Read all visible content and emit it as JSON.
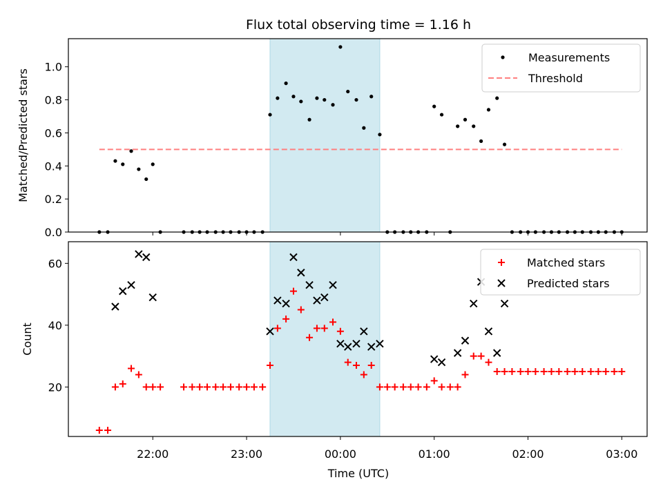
{
  "chart_data": {
    "type": "scatter",
    "title": "Flux total observing time = 1.16 h",
    "xlabel": "Time (UTC)",
    "x_ticks": [
      "22:00",
      "23:00",
      "00:00",
      "01:00",
      "02:00",
      "03:00"
    ],
    "x_tick_values": [
      22.0,
      23.0,
      24.0,
      25.0,
      26.0,
      27.0
    ],
    "xlim": [
      21.1,
      27.27
    ],
    "highlight_span": {
      "x_start": 23.25,
      "x_end": 24.42,
      "color": "#add8e6"
    },
    "panels": [
      {
        "ylabel": "Matched/Predicted stars",
        "ylim": [
          0,
          1.17
        ],
        "y_ticks": [
          "0.0",
          "0.2",
          "0.4",
          "0.6",
          "0.8",
          "1.0"
        ],
        "y_tick_values": [
          0,
          0.2,
          0.4,
          0.6,
          0.8,
          1.0
        ],
        "legend_position": "top-right",
        "series": [
          {
            "name": "Measurements",
            "marker": "dot",
            "color": "#000000",
            "points": [
              [
                21.43,
                0
              ],
              [
                21.52,
                0
              ],
              [
                21.6,
                0.43
              ],
              [
                21.68,
                0.41
              ],
              [
                21.77,
                0.49
              ],
              [
                21.85,
                0.38
              ],
              [
                21.93,
                0.32
              ],
              [
                22.0,
                0.41
              ],
              [
                22.08,
                0
              ],
              [
                22.33,
                0
              ],
              [
                22.42,
                0
              ],
              [
                22.5,
                0
              ],
              [
                22.58,
                0
              ],
              [
                22.67,
                0
              ],
              [
                22.75,
                0
              ],
              [
                22.83,
                0
              ],
              [
                22.92,
                0
              ],
              [
                23.0,
                0
              ],
              [
                23.08,
                0
              ],
              [
                23.17,
                0
              ],
              [
                23.25,
                0.71
              ],
              [
                23.33,
                0.81
              ],
              [
                23.42,
                0.9
              ],
              [
                23.5,
                0.82
              ],
              [
                23.58,
                0.79
              ],
              [
                23.67,
                0.68
              ],
              [
                23.75,
                0.81
              ],
              [
                23.83,
                0.8
              ],
              [
                23.92,
                0.77
              ],
              [
                24.0,
                1.12
              ],
              [
                24.08,
                0.85
              ],
              [
                24.17,
                0.8
              ],
              [
                24.25,
                0.63
              ],
              [
                24.33,
                0.82
              ],
              [
                24.42,
                0.59
              ],
              [
                24.5,
                0
              ],
              [
                24.58,
                0
              ],
              [
                24.67,
                0
              ],
              [
                24.75,
                0
              ],
              [
                24.83,
                0
              ],
              [
                24.92,
                0
              ],
              [
                25.0,
                0.76
              ],
              [
                25.08,
                0.71
              ],
              [
                25.17,
                0
              ],
              [
                25.25,
                0.64
              ],
              [
                25.33,
                0.68
              ],
              [
                25.42,
                0.64
              ],
              [
                25.5,
                0.55
              ],
              [
                25.58,
                0.74
              ],
              [
                25.67,
                0.81
              ],
              [
                25.75,
                0.53
              ],
              [
                25.83,
                0
              ],
              [
                25.92,
                0
              ],
              [
                26.0,
                0
              ],
              [
                26.08,
                0
              ],
              [
                26.17,
                0
              ],
              [
                26.25,
                0
              ],
              [
                26.33,
                0
              ],
              [
                26.42,
                0
              ],
              [
                26.5,
                0
              ],
              [
                26.58,
                0
              ],
              [
                26.67,
                0
              ],
              [
                26.75,
                0
              ],
              [
                26.83,
                0
              ],
              [
                26.92,
                0
              ],
              [
                27.0,
                0
              ]
            ]
          },
          {
            "name": "Threshold",
            "marker": "dashed-line",
            "color": "#ff7f7f",
            "points": [
              [
                21.43,
                0.5
              ],
              [
                27.0,
                0.5
              ]
            ]
          }
        ]
      },
      {
        "ylabel": "Count",
        "ylim": [
          4,
          67
        ],
        "y_ticks": [
          "20",
          "40",
          "60"
        ],
        "y_tick_values": [
          20,
          40,
          60
        ],
        "legend_position": "top-right",
        "series": [
          {
            "name": "Matched stars",
            "marker": "plus",
            "color": "#ff0000",
            "points": [
              [
                21.43,
                6
              ],
              [
                21.52,
                6
              ],
              [
                21.6,
                20
              ],
              [
                21.68,
                21
              ],
              [
                21.77,
                26
              ],
              [
                21.85,
                24
              ],
              [
                21.93,
                20
              ],
              [
                22.0,
                20
              ],
              [
                22.08,
                20
              ],
              [
                22.33,
                20
              ],
              [
                22.42,
                20
              ],
              [
                22.5,
                20
              ],
              [
                22.58,
                20
              ],
              [
                22.67,
                20
              ],
              [
                22.75,
                20
              ],
              [
                22.83,
                20
              ],
              [
                22.92,
                20
              ],
              [
                23.0,
                20
              ],
              [
                23.08,
                20
              ],
              [
                23.17,
                20
              ],
              [
                23.25,
                27
              ],
              [
                23.33,
                39
              ],
              [
                23.42,
                42
              ],
              [
                23.5,
                51
              ],
              [
                23.58,
                45
              ],
              [
                23.67,
                36
              ],
              [
                23.75,
                39
              ],
              [
                23.83,
                39
              ],
              [
                23.92,
                41
              ],
              [
                24.0,
                38
              ],
              [
                24.08,
                28
              ],
              [
                24.17,
                27
              ],
              [
                24.25,
                24
              ],
              [
                24.33,
                27
              ],
              [
                24.42,
                20
              ],
              [
                24.5,
                20
              ],
              [
                24.58,
                20
              ],
              [
                24.67,
                20
              ],
              [
                24.75,
                20
              ],
              [
                24.83,
                20
              ],
              [
                24.92,
                20
              ],
              [
                25.0,
                22
              ],
              [
                25.08,
                20
              ],
              [
                25.17,
                20
              ],
              [
                25.25,
                20
              ],
              [
                25.33,
                24
              ],
              [
                25.42,
                30
              ],
              [
                25.5,
                30
              ],
              [
                25.58,
                28
              ],
              [
                25.67,
                25
              ],
              [
                25.75,
                25
              ],
              [
                25.83,
                25
              ],
              [
                25.92,
                25
              ],
              [
                26.0,
                25
              ],
              [
                26.08,
                25
              ],
              [
                26.17,
                25
              ],
              [
                26.25,
                25
              ],
              [
                26.33,
                25
              ],
              [
                26.42,
                25
              ],
              [
                26.5,
                25
              ],
              [
                26.58,
                25
              ],
              [
                26.67,
                25
              ],
              [
                26.75,
                25
              ],
              [
                26.83,
                25
              ],
              [
                26.92,
                25
              ],
              [
                27.0,
                25
              ]
            ]
          },
          {
            "name": "Predicted stars",
            "marker": "x",
            "color": "#000000",
            "points": [
              [
                21.6,
                46
              ],
              [
                21.68,
                51
              ],
              [
                21.77,
                53
              ],
              [
                21.85,
                63
              ],
              [
                21.93,
                62
              ],
              [
                22.0,
                49
              ],
              [
                23.25,
                38
              ],
              [
                23.33,
                48
              ],
              [
                23.42,
                47
              ],
              [
                23.5,
                62
              ],
              [
                23.58,
                57
              ],
              [
                23.67,
                53
              ],
              [
                23.75,
                48
              ],
              [
                23.83,
                49
              ],
              [
                23.92,
                53
              ],
              [
                24.0,
                34
              ],
              [
                24.08,
                33
              ],
              [
                24.17,
                34
              ],
              [
                24.25,
                38
              ],
              [
                24.33,
                33
              ],
              [
                24.42,
                34
              ],
              [
                25.0,
                29
              ],
              [
                25.08,
                28
              ],
              [
                25.25,
                31
              ],
              [
                25.33,
                35
              ],
              [
                25.42,
                47
              ],
              [
                25.5,
                54
              ],
              [
                25.58,
                38
              ],
              [
                25.67,
                31
              ],
              [
                25.75,
                47
              ]
            ]
          }
        ]
      }
    ]
  }
}
